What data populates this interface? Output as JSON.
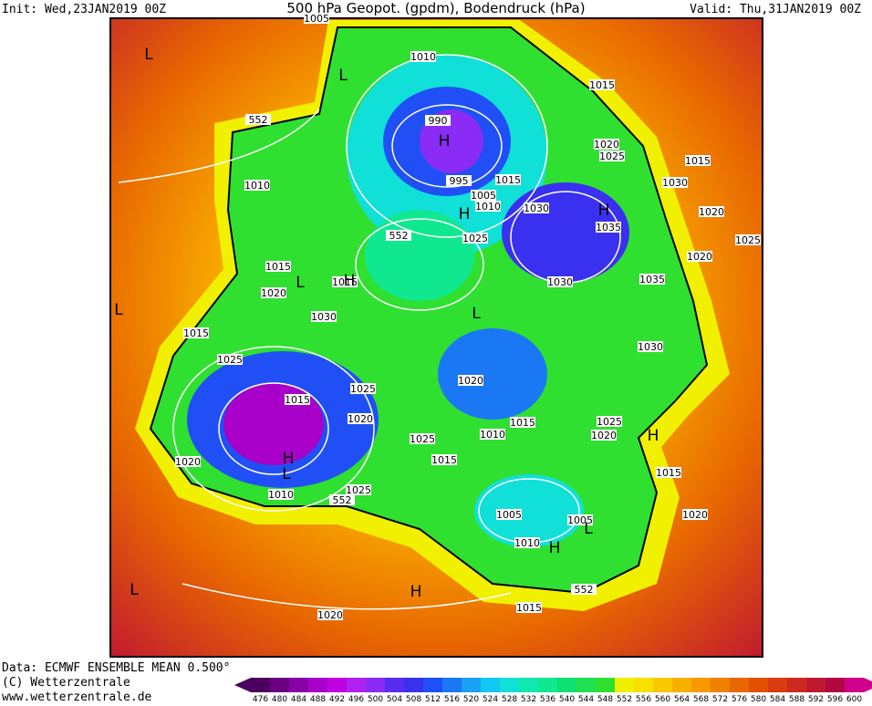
{
  "header": {
    "init": "Init: Wed,23JAN2019 00Z",
    "title": "500 hPa Geopot. (gpdm), Bodendruck (hPa)",
    "valid": "Valid: Thu,31JAN2019 00Z"
  },
  "footer": {
    "data": "Data: ECMWF ENSEMBLE MEAN 0.500°",
    "copyright": "(C) Wetterzentrale",
    "url": "www.wetterzentrale.de"
  },
  "colorbar": {
    "ticks": [
      476,
      480,
      484,
      488,
      492,
      496,
      500,
      504,
      508,
      512,
      516,
      520,
      524,
      528,
      532,
      536,
      540,
      544,
      548,
      552,
      556,
      560,
      564,
      568,
      572,
      576,
      580,
      584,
      588,
      592,
      596,
      600
    ],
    "colors": [
      "#4b0060",
      "#6a007f",
      "#8a00a8",
      "#a800c8",
      "#c000e0",
      "#b020f0",
      "#8a2cf5",
      "#5a2cf0",
      "#3a30f0",
      "#2050f5",
      "#1a78f5",
      "#1aa0f5",
      "#10c8f0",
      "#10e0d8",
      "#10e8b0",
      "#10e890",
      "#10e070",
      "#20e050",
      "#30e030",
      "#f0f000",
      "#f8e000",
      "#f8c800",
      "#f8b000",
      "#f89800",
      "#f08000",
      "#e86800",
      "#e05000",
      "#d83c10",
      "#cc2a20",
      "#c01830",
      "#b00840",
      "#d0008a"
    ]
  },
  "map": {
    "labels": [
      "L",
      "1005",
      "1010",
      "L",
      "552",
      "1015",
      "990",
      "H",
      "1020",
      "1025",
      "1015",
      "995",
      "1005",
      "1015",
      "1010",
      "1030",
      "H",
      "1030",
      "1035",
      "1020",
      "1010",
      "552",
      "1025",
      "H",
      "1020",
      "1015",
      "L",
      "1015",
      "H",
      "1035",
      "1025",
      "1030",
      "L",
      "1020",
      "L",
      "1030",
      "1015",
      "1025",
      "1030",
      "1020",
      "1015",
      "H",
      "1025",
      "1020",
      "1015",
      "1010",
      "1025",
      "H",
      "1025",
      "1020",
      "1020",
      "L",
      "1010",
      "552",
      "1015",
      "1025",
      "1005",
      "1005",
      "1010",
      "H",
      "L",
      "1015",
      "552",
      "L",
      "H",
      "1020",
      "1020",
      "1015"
    ]
  }
}
